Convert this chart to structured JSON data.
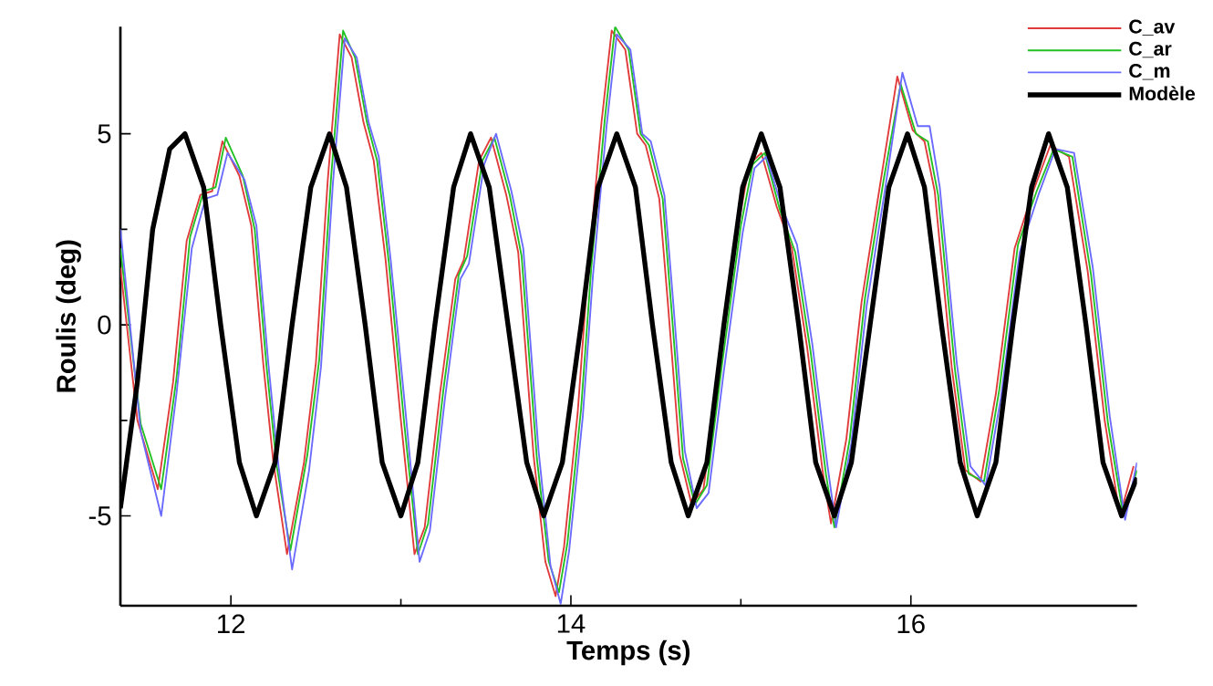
{
  "chart_data": {
    "type": "line",
    "xlabel": "Temps (s)",
    "ylabel": "Roulis (deg)",
    "xlim": [
      11.35,
      17.33
    ],
    "xticks": [
      12,
      14,
      16
    ],
    "ylim": [
      -7.35,
      7.8
    ],
    "yticks": [
      -5,
      0,
      5
    ],
    "grid": false,
    "legend": "top right",
    "marker": "none",
    "series": [
      {
        "name": "C_av",
        "color": "#e03a3a",
        "x": [
          11.35,
          11.45,
          11.57,
          11.66,
          11.74,
          11.82,
          11.89,
          11.95,
          12.05,
          12.12,
          12.19,
          12.25,
          12.33,
          12.43,
          12.5,
          12.57,
          12.64,
          12.71,
          12.78,
          12.84,
          12.91,
          13.0,
          13.08,
          13.14,
          13.23,
          13.32,
          13.37,
          13.46,
          13.53,
          13.62,
          13.69,
          13.78,
          13.85,
          13.91,
          13.96,
          14.04,
          14.1,
          14.18,
          14.24,
          14.32,
          14.39,
          14.44,
          14.52,
          14.57,
          14.64,
          14.71,
          14.78,
          14.87,
          14.98,
          15.05,
          15.12,
          15.21,
          15.3,
          15.39,
          15.48,
          15.53,
          15.62,
          15.71,
          15.82,
          15.92,
          16.01,
          16.08,
          16.14,
          16.24,
          16.32,
          16.41,
          16.5,
          16.61,
          16.72,
          16.82,
          16.93,
          17.04,
          17.14,
          17.23,
          17.31
        ],
        "values": [
          1.5,
          -2.5,
          -4.3,
          -1.5,
          2.2,
          3.4,
          3.5,
          4.8,
          3.9,
          2.6,
          -1.0,
          -3.6,
          -6.0,
          -3.6,
          -1.0,
          3.8,
          7.6,
          7.0,
          5.3,
          4.3,
          1.7,
          -2.5,
          -6.0,
          -5.3,
          -1.8,
          1.2,
          1.7,
          4.3,
          4.9,
          3.4,
          1.9,
          -3.4,
          -6.2,
          -7.1,
          -5.8,
          -2.3,
          1.4,
          5.3,
          7.7,
          7.2,
          5.0,
          4.7,
          3.3,
          0.6,
          -3.4,
          -4.7,
          -4.3,
          -1.1,
          2.5,
          4.2,
          4.5,
          3.1,
          2.0,
          -0.6,
          -3.8,
          -5.2,
          -3.0,
          0.6,
          3.7,
          6.5,
          5.1,
          4.8,
          3.5,
          -1.1,
          -3.8,
          -4.1,
          -1.8,
          2.0,
          3.5,
          4.7,
          4.4,
          1.4,
          -2.5,
          -5.0,
          -3.7
        ]
      },
      {
        "name": "C_ar",
        "color": "#22c022",
        "x": [
          11.35,
          11.47,
          11.59,
          11.68,
          11.76,
          11.84,
          11.91,
          11.97,
          12.07,
          12.14,
          12.21,
          12.27,
          12.35,
          12.45,
          12.52,
          12.59,
          12.66,
          12.73,
          12.8,
          12.86,
          12.93,
          13.02,
          13.1,
          13.16,
          13.25,
          13.34,
          13.39,
          13.48,
          13.55,
          13.64,
          13.71,
          13.8,
          13.87,
          13.93,
          13.98,
          14.06,
          14.12,
          14.2,
          14.26,
          14.34,
          14.41,
          14.46,
          14.54,
          14.59,
          14.66,
          14.73,
          14.8,
          14.89,
          15.0,
          15.07,
          15.14,
          15.23,
          15.32,
          15.41,
          15.5,
          15.55,
          15.64,
          15.73,
          15.84,
          15.94,
          16.03,
          16.1,
          16.16,
          16.26,
          16.34,
          16.43,
          16.52,
          16.63,
          16.74,
          16.84,
          16.95,
          17.06,
          17.16,
          17.25,
          17.33
        ],
        "values": [
          2.0,
          -2.6,
          -4.3,
          -1.4,
          2.3,
          3.5,
          3.6,
          4.9,
          3.9,
          2.5,
          -1.1,
          -3.7,
          -5.9,
          -3.4,
          -0.9,
          3.9,
          7.7,
          7.0,
          5.3,
          4.3,
          1.6,
          -2.6,
          -6.0,
          -5.2,
          -1.7,
          1.3,
          1.8,
          4.3,
          4.9,
          3.4,
          1.8,
          -3.5,
          -6.2,
          -7.0,
          -5.7,
          -2.2,
          1.5,
          5.4,
          7.8,
          7.2,
          5.0,
          4.7,
          3.3,
          0.5,
          -3.5,
          -4.7,
          -4.2,
          -1.0,
          2.6,
          4.2,
          4.5,
          3.0,
          1.9,
          -0.7,
          -3.9,
          -5.3,
          -3.0,
          0.7,
          3.8,
          6.3,
          5.0,
          4.8,
          3.4,
          -1.2,
          -3.9,
          -4.1,
          -1.7,
          2.1,
          3.5,
          4.6,
          4.4,
          1.3,
          -2.6,
          -5.0,
          -3.8
        ]
      },
      {
        "name": "C_m",
        "color": "#6a6aff",
        "x": [
          11.35,
          11.47,
          11.59,
          11.68,
          11.77,
          11.85,
          11.92,
          11.98,
          12.08,
          12.15,
          12.22,
          12.28,
          12.36,
          12.46,
          12.53,
          12.6,
          12.67,
          12.74,
          12.81,
          12.87,
          12.94,
          13.03,
          13.11,
          13.17,
          13.26,
          13.35,
          13.4,
          13.49,
          13.56,
          13.65,
          13.72,
          13.81,
          13.88,
          13.94,
          13.99,
          14.07,
          14.13,
          14.21,
          14.27,
          14.35,
          14.42,
          14.47,
          14.55,
          14.6,
          14.67,
          14.74,
          14.81,
          14.9,
          15.01,
          15.08,
          15.15,
          15.24,
          15.33,
          15.42,
          15.51,
          15.56,
          15.65,
          15.74,
          15.85,
          15.95,
          16.04,
          16.11,
          16.17,
          16.27,
          16.35,
          16.44,
          16.53,
          16.64,
          16.75,
          16.85,
          16.96,
          17.07,
          17.17,
          17.26,
          17.33
        ],
        "values": [
          2.5,
          -2.8,
          -5.0,
          -1.8,
          2.0,
          3.3,
          3.4,
          4.5,
          3.8,
          2.6,
          -1.0,
          -3.7,
          -6.4,
          -3.8,
          -1.1,
          3.7,
          7.5,
          7.0,
          5.3,
          4.4,
          1.7,
          -2.4,
          -6.2,
          -5.4,
          -1.9,
          1.2,
          1.6,
          4.2,
          5.0,
          3.5,
          2.0,
          -3.3,
          -6.3,
          -7.3,
          -5.9,
          -2.4,
          1.3,
          5.2,
          7.6,
          7.2,
          5.0,
          4.8,
          3.4,
          0.7,
          -3.3,
          -4.8,
          -4.4,
          -1.2,
          2.4,
          4.1,
          4.4,
          3.1,
          2.1,
          -0.5,
          -3.7,
          -5.3,
          -3.1,
          0.5,
          3.6,
          6.6,
          5.2,
          5.2,
          3.6,
          -1.0,
          -3.7,
          -4.2,
          -1.9,
          1.9,
          3.4,
          4.6,
          4.5,
          1.5,
          -2.4,
          -5.1,
          -3.6
        ]
      },
      {
        "name": "Modèle",
        "color": "#000000",
        "x": [
          11.35,
          11.45,
          11.54,
          11.64,
          11.73,
          11.84,
          11.94,
          12.05,
          12.15,
          12.26,
          12.36,
          12.47,
          12.58,
          12.68,
          12.79,
          12.89,
          13.0,
          13.1,
          13.2,
          13.31,
          13.41,
          13.52,
          13.63,
          13.74,
          13.84,
          13.95,
          14.06,
          14.16,
          14.27,
          14.38,
          14.48,
          14.59,
          14.69,
          14.8,
          14.9,
          15.01,
          15.12,
          15.23,
          15.34,
          15.44,
          15.55,
          15.65,
          15.76,
          15.87,
          15.98,
          16.08,
          16.18,
          16.29,
          16.39,
          16.5,
          16.6,
          16.71,
          16.81,
          16.92,
          17.03,
          17.13,
          17.24,
          17.33
        ],
        "values": [
          -4.8,
          -1.5,
          2.5,
          4.6,
          5.0,
          3.6,
          0,
          -3.6,
          -5.0,
          -3.6,
          0,
          3.6,
          5.0,
          3.6,
          0,
          -3.6,
          -5.0,
          -3.6,
          0,
          3.6,
          5.0,
          3.6,
          0,
          -3.6,
          -5.0,
          -3.6,
          0,
          3.6,
          5.0,
          3.6,
          0,
          -3.6,
          -5.0,
          -3.6,
          0,
          3.6,
          5.0,
          3.6,
          0,
          -3.6,
          -5.0,
          -3.6,
          0,
          3.6,
          5.0,
          3.6,
          0,
          -3.6,
          -5.0,
          -3.6,
          0,
          3.6,
          5.0,
          3.6,
          0,
          -3.6,
          -5.0,
          -4.0
        ]
      }
    ]
  }
}
